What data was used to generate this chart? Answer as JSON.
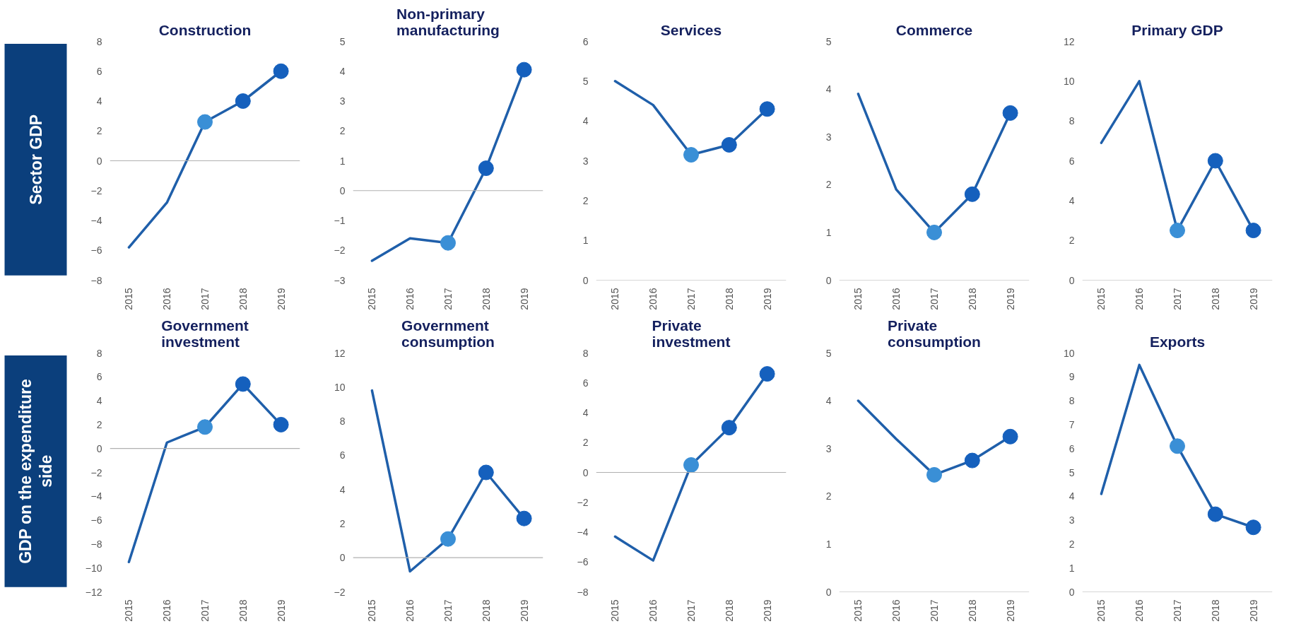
{
  "chart_data": [
    {
      "type": "line",
      "title": "Construction",
      "annotations": [
        "Sector GDP"
      ],
      "x": [
        2015,
        2016,
        2017,
        2018,
        2019
      ],
      "xlim": [
        2014.5,
        2019.5
      ],
      "xticks": [
        2015,
        2016,
        2017,
        2018,
        2019
      ],
      "ylim": [
        -8,
        8
      ],
      "yticks": [
        -8,
        -6,
        -4,
        -2,
        0,
        2,
        4,
        6,
        8
      ],
      "series": [
        {
          "color": "#1f5faa",
          "values": [
            -5.8,
            -2.8,
            2.6,
            4.0,
            6.0
          ]
        },
        {
          "type": "scatter",
          "marker": "circle",
          "x": [
            2017,
            2018,
            2019
          ],
          "colors": [
            "#3a8fd6",
            "#1560bd",
            "#1560bd"
          ],
          "values": [
            2.6,
            4.0,
            6.0
          ]
        }
      ]
    },
    {
      "type": "line",
      "title": "Non-primary manufacturing",
      "x": [
        2015,
        2016,
        2017,
        2018,
        2019
      ],
      "xlim": [
        2014.5,
        2019.5
      ],
      "xticks": [
        2015,
        2016,
        2017,
        2018,
        2019
      ],
      "ylim": [
        -3,
        5
      ],
      "yticks": [
        -3,
        -2,
        -1,
        0,
        1,
        2,
        3,
        4,
        5
      ],
      "series": [
        {
          "color": "#1f5faa",
          "values": [
            -2.35,
            -1.6,
            -1.75,
            0.75,
            4.05
          ]
        },
        {
          "type": "scatter",
          "marker": "circle",
          "x": [
            2017,
            2018,
            2019
          ],
          "colors": [
            "#3a8fd6",
            "#1560bd",
            "#1560bd"
          ],
          "values": [
            -1.75,
            0.75,
            4.05
          ]
        }
      ]
    },
    {
      "type": "line",
      "title": "Services",
      "x": [
        2015,
        2016,
        2017,
        2018,
        2019
      ],
      "xlim": [
        2014.5,
        2019.5
      ],
      "xticks": [
        2015,
        2016,
        2017,
        2018,
        2019
      ],
      "ylim": [
        0,
        6
      ],
      "yticks": [
        0,
        1,
        2,
        3,
        4,
        5,
        6
      ],
      "series": [
        {
          "color": "#1f5faa",
          "values": [
            5.0,
            4.4,
            3.15,
            3.4,
            4.3
          ]
        },
        {
          "type": "scatter",
          "marker": "circle",
          "x": [
            2017,
            2018,
            2019
          ],
          "colors": [
            "#3a8fd6",
            "#1560bd",
            "#1560bd"
          ],
          "values": [
            3.15,
            3.4,
            4.3
          ]
        }
      ]
    },
    {
      "type": "line",
      "title": "Commerce",
      "x": [
        2015,
        2016,
        2017,
        2018,
        2019
      ],
      "xlim": [
        2014.5,
        2019.5
      ],
      "xticks": [
        2015,
        2016,
        2017,
        2018,
        2019
      ],
      "ylim": [
        0,
        5
      ],
      "yticks": [
        0,
        1,
        2,
        3,
        4,
        5
      ],
      "series": [
        {
          "color": "#1f5faa",
          "values": [
            3.9,
            1.9,
            1.0,
            1.8,
            3.5
          ]
        },
        {
          "type": "scatter",
          "marker": "circle",
          "x": [
            2017,
            2018,
            2019
          ],
          "colors": [
            "#3a8fd6",
            "#1560bd",
            "#1560bd"
          ],
          "values": [
            1.0,
            1.8,
            3.5
          ]
        }
      ]
    },
    {
      "type": "line",
      "title": "Primary GDP",
      "x": [
        2015,
        2016,
        2017,
        2018,
        2019
      ],
      "xlim": [
        2014.5,
        2019.5
      ],
      "xticks": [
        2015,
        2016,
        2017,
        2018,
        2019
      ],
      "ylim": [
        0,
        12
      ],
      "yticks": [
        0,
        2,
        4,
        6,
        8,
        10,
        12
      ],
      "series": [
        {
          "color": "#1f5faa",
          "values": [
            6.9,
            10.0,
            2.5,
            6.0,
            2.5
          ]
        },
        {
          "type": "scatter",
          "marker": "circle",
          "x": [
            2017,
            2018,
            2019
          ],
          "colors": [
            "#3a8fd6",
            "#1560bd",
            "#1560bd"
          ],
          "values": [
            2.5,
            6.0,
            2.5
          ]
        }
      ]
    },
    {
      "type": "line",
      "title": "Government investment",
      "annotations": [
        "GDP on the expenditure side"
      ],
      "x": [
        2015,
        2016,
        2017,
        2018,
        2019
      ],
      "xlim": [
        2014.5,
        2019.5
      ],
      "xticks": [
        2015,
        2016,
        2017,
        2018,
        2019
      ],
      "ylim": [
        -12,
        8
      ],
      "yticks": [
        -12,
        -10,
        -8,
        -6,
        -4,
        -2,
        0,
        2,
        4,
        6,
        8
      ],
      "series": [
        {
          "color": "#1f5faa",
          "values": [
            -9.5,
            0.5,
            1.8,
            5.4,
            2.0
          ]
        },
        {
          "type": "scatter",
          "marker": "circle",
          "x": [
            2017,
            2018,
            2019
          ],
          "colors": [
            "#3a8fd6",
            "#1560bd",
            "#1560bd"
          ],
          "values": [
            1.8,
            5.4,
            2.0
          ]
        }
      ]
    },
    {
      "type": "line",
      "title": "Government consumption",
      "x": [
        2015,
        2016,
        2017,
        2018,
        2019
      ],
      "xlim": [
        2014.5,
        2019.5
      ],
      "xticks": [
        2015,
        2016,
        2017,
        2018,
        2019
      ],
      "ylim": [
        -2,
        12
      ],
      "yticks": [
        -2,
        0,
        2,
        4,
        6,
        8,
        10,
        12
      ],
      "series": [
        {
          "color": "#1f5faa",
          "values": [
            9.8,
            -0.8,
            1.1,
            5.0,
            2.3
          ]
        },
        {
          "type": "scatter",
          "marker": "circle",
          "x": [
            2017,
            2018,
            2019
          ],
          "colors": [
            "#3a8fd6",
            "#1560bd",
            "#1560bd"
          ],
          "values": [
            1.1,
            5.0,
            2.3
          ]
        }
      ]
    },
    {
      "type": "line",
      "title": "Private investment",
      "x": [
        2015,
        2016,
        2017,
        2018,
        2019
      ],
      "xlim": [
        2014.5,
        2019.5
      ],
      "xticks": [
        2015,
        2016,
        2017,
        2018,
        2019
      ],
      "ylim": [
        -8,
        8
      ],
      "yticks": [
        -8,
        -6,
        -4,
        -2,
        0,
        2,
        4,
        6,
        8
      ],
      "series": [
        {
          "color": "#1f5faa",
          "values": [
            -4.3,
            -5.9,
            0.5,
            3.0,
            6.6
          ]
        },
        {
          "type": "scatter",
          "marker": "circle",
          "x": [
            2017,
            2018,
            2019
          ],
          "colors": [
            "#3a8fd6",
            "#1560bd",
            "#1560bd"
          ],
          "values": [
            0.5,
            3.0,
            6.6
          ]
        }
      ]
    },
    {
      "type": "line",
      "title": "Private consumption",
      "x": [
        2015,
        2016,
        2017,
        2018,
        2019
      ],
      "xlim": [
        2014.5,
        2019.5
      ],
      "xticks": [
        2015,
        2016,
        2017,
        2018,
        2019
      ],
      "ylim": [
        0,
        5
      ],
      "yticks": [
        0,
        1,
        2,
        3,
        4,
        5
      ],
      "series": [
        {
          "color": "#1f5faa",
          "values": [
            4.0,
            3.2,
            2.45,
            2.75,
            3.25
          ]
        },
        {
          "type": "scatter",
          "marker": "circle",
          "x": [
            2017,
            2018,
            2019
          ],
          "colors": [
            "#3a8fd6",
            "#1560bd",
            "#1560bd"
          ],
          "values": [
            2.45,
            2.75,
            3.25
          ]
        }
      ]
    },
    {
      "type": "line",
      "title": "Exports",
      "x": [
        2015,
        2016,
        2017,
        2018,
        2019
      ],
      "xlim": [
        2014.5,
        2019.5
      ],
      "xticks": [
        2015,
        2016,
        2017,
        2018,
        2019
      ],
      "ylim": [
        0,
        10
      ],
      "yticks": [
        0,
        1,
        2,
        3,
        4,
        5,
        6,
        7,
        8,
        9,
        10
      ],
      "series": [
        {
          "color": "#1f5faa",
          "values": [
            4.1,
            9.5,
            6.1,
            3.25,
            2.7
          ]
        },
        {
          "type": "scatter",
          "marker": "circle",
          "x": [
            2017,
            2018,
            2019
          ],
          "colors": [
            "#3a8fd6",
            "#1560bd",
            "#1560bd"
          ],
          "values": [
            6.1,
            3.25,
            2.7
          ]
        }
      ]
    }
  ]
}
